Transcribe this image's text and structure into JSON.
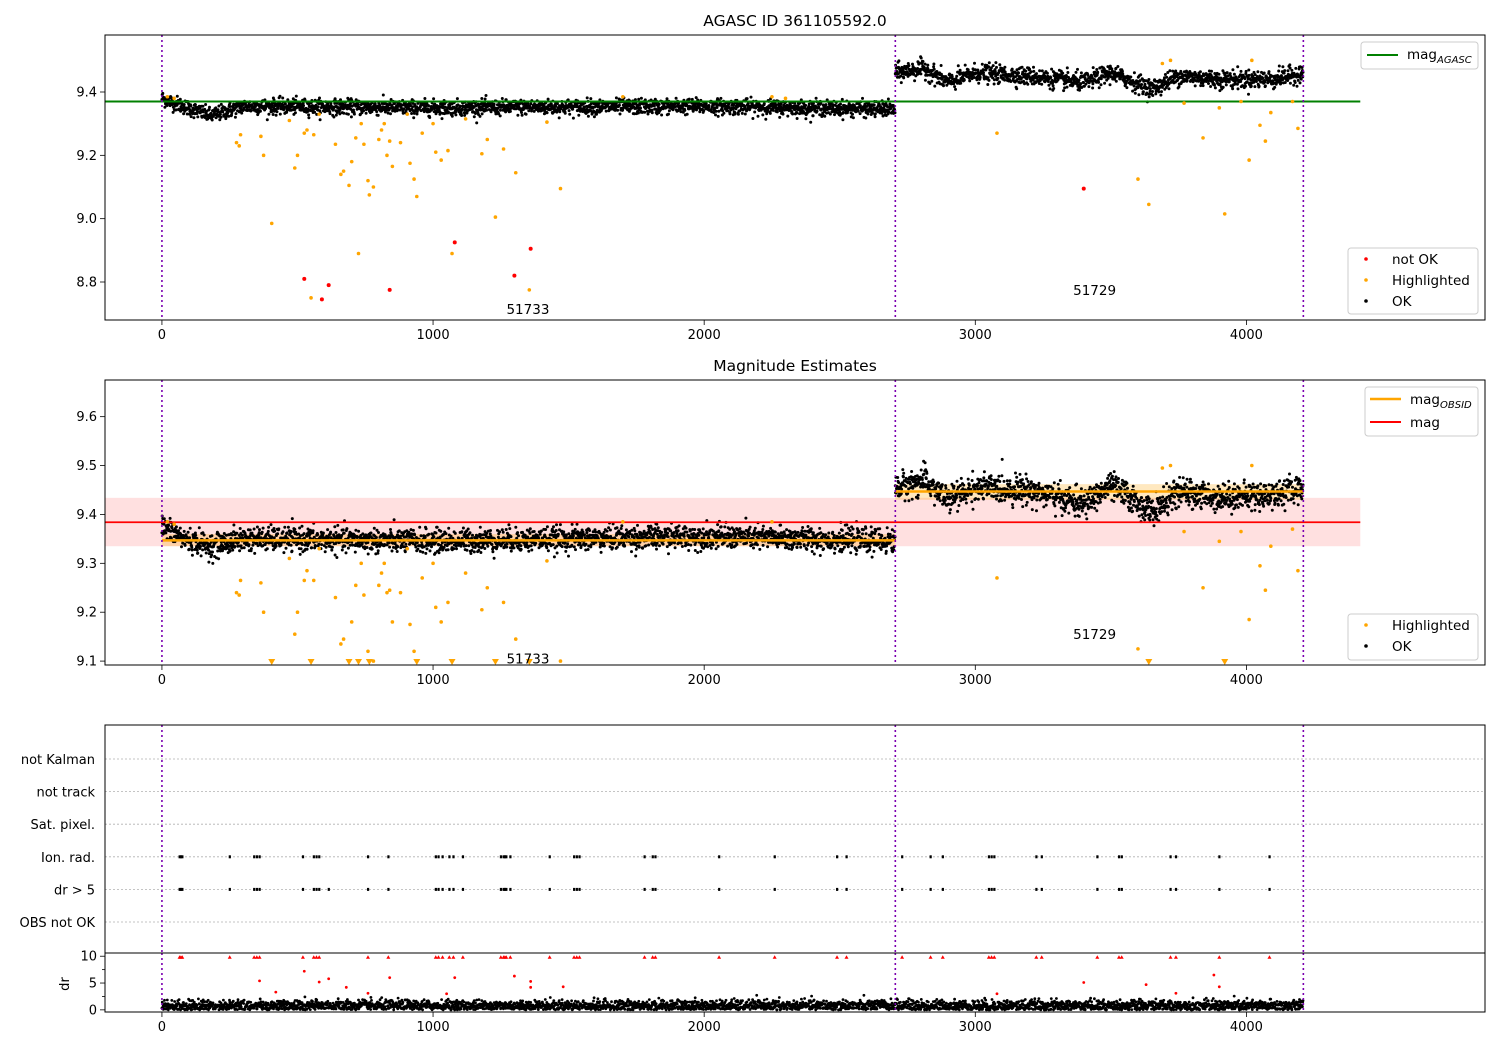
{
  "chart_data": [
    {
      "id": "panel1",
      "type": "scatter",
      "title": "AGASC ID 361105592.0",
      "xlim": [
        -210,
        4880
      ],
      "ylim": [
        8.68,
        9.58
      ],
      "xticks": [
        0,
        1000,
        2000,
        3000,
        4000
      ],
      "yticks": [
        8.8,
        9.0,
        9.2,
        9.4
      ],
      "ytick_labels": [
        "8.8",
        "9.0",
        "9.2",
        "9.4"
      ],
      "obsid_boundaries": [
        0,
        2705,
        4210
      ],
      "colors": {
        "ok": "#000000",
        "highlighted": "#ffa500",
        "not_ok": "#ff0000",
        "mag_agasc": "#008000",
        "boundary": "#7b00b0"
      },
      "mag_agasc": {
        "value": 9.37,
        "x_range": [
          -210,
          4420
        ]
      },
      "segments": [
        {
          "obsid": "51733",
          "x_range": [
            0,
            2705
          ],
          "mean": 9.35,
          "noise": 0.012,
          "drift": [
            [
              0,
              9.38
            ],
            [
              80,
              9.355
            ],
            [
              180,
              9.325
            ],
            [
              300,
              9.355
            ],
            [
              1000,
              9.35
            ],
            [
              2000,
              9.355
            ],
            [
              2705,
              9.345
            ]
          ]
        },
        {
          "obsid": "51729",
          "x_range": [
            2705,
            4210
          ],
          "mean": 9.45,
          "noise": 0.014,
          "drift": [
            [
              2705,
              9.46
            ],
            [
              2810,
              9.475
            ],
            [
              2900,
              9.43
            ],
            [
              3000,
              9.46
            ],
            [
              3200,
              9.45
            ],
            [
              3400,
              9.43
            ],
            [
              3500,
              9.46
            ],
            [
              3650,
              9.41
            ],
            [
              3750,
              9.45
            ],
            [
              3900,
              9.44
            ],
            [
              4100,
              9.44
            ],
            [
              4210,
              9.46
            ]
          ]
        }
      ],
      "highlighted": [
        [
          20,
          9.385
        ],
        [
          45,
          9.38
        ],
        [
          275,
          9.24
        ],
        [
          285,
          9.23
        ],
        [
          290,
          9.265
        ],
        [
          365,
          9.26
        ],
        [
          375,
          9.2
        ],
        [
          405,
          8.985
        ],
        [
          470,
          9.31
        ],
        [
          490,
          9.16
        ],
        [
          500,
          9.2
        ],
        [
          525,
          9.27
        ],
        [
          535,
          9.28
        ],
        [
          550,
          8.75
        ],
        [
          560,
          9.265
        ],
        [
          580,
          9.33
        ],
        [
          640,
          9.235
        ],
        [
          660,
          9.14
        ],
        [
          670,
          9.15
        ],
        [
          690,
          9.105
        ],
        [
          700,
          9.18
        ],
        [
          715,
          9.255
        ],
        [
          725,
          8.89
        ],
        [
          735,
          9.3
        ],
        [
          745,
          9.235
        ],
        [
          760,
          9.12
        ],
        [
          765,
          9.075
        ],
        [
          780,
          9.1
        ],
        [
          800,
          9.25
        ],
        [
          810,
          9.28
        ],
        [
          820,
          9.3
        ],
        [
          830,
          9.2
        ],
        [
          840,
          9.245
        ],
        [
          850,
          9.165
        ],
        [
          880,
          9.24
        ],
        [
          905,
          9.33
        ],
        [
          915,
          9.175
        ],
        [
          930,
          9.125
        ],
        [
          940,
          9.07
        ],
        [
          960,
          9.27
        ],
        [
          1000,
          9.3
        ],
        [
          1010,
          9.21
        ],
        [
          1030,
          9.185
        ],
        [
          1055,
          9.215
        ],
        [
          1070,
          8.89
        ],
        [
          1120,
          9.315
        ],
        [
          1180,
          9.205
        ],
        [
          1200,
          9.25
        ],
        [
          1230,
          9.005
        ],
        [
          1260,
          9.22
        ],
        [
          1305,
          9.145
        ],
        [
          1355,
          8.775
        ],
        [
          1420,
          9.305
        ],
        [
          1470,
          9.095
        ],
        [
          1700,
          9.385
        ],
        [
          2250,
          9.385
        ],
        [
          2300,
          9.38
        ],
        [
          3080,
          9.27
        ],
        [
          3600,
          9.125
        ],
        [
          3640,
          9.045
        ],
        [
          3690,
          9.49
        ],
        [
          3720,
          9.5
        ],
        [
          3770,
          9.365
        ],
        [
          3840,
          9.255
        ],
        [
          3900,
          9.35
        ],
        [
          3920,
          9.015
        ],
        [
          3980,
          9.37
        ],
        [
          4010,
          9.185
        ],
        [
          4020,
          9.5
        ],
        [
          4050,
          9.295
        ],
        [
          4070,
          9.245
        ],
        [
          4090,
          9.335
        ],
        [
          4170,
          9.37
        ],
        [
          4190,
          9.285
        ]
      ],
      "not_ok": [
        [
          525,
          8.81
        ],
        [
          590,
          8.745
        ],
        [
          615,
          8.79
        ],
        [
          840,
          8.775
        ],
        [
          1080,
          8.925
        ],
        [
          1300,
          8.82
        ],
        [
          1360,
          8.905
        ],
        [
          3400,
          9.095
        ]
      ],
      "annotations": [
        {
          "text": "51733",
          "x": 1350,
          "y": 8.715
        },
        {
          "text": "51729",
          "x": 3440,
          "y": 8.775
        }
      ],
      "legend": {
        "top": [
          {
            "label": "mag",
            "subscript": "AGASC"
          }
        ],
        "bottom": [
          {
            "label": "not OK"
          },
          {
            "label": "Highlighted"
          },
          {
            "label": "OK"
          }
        ]
      }
    },
    {
      "id": "panel2",
      "type": "scatter",
      "title": "Magnitude Estimates",
      "xlim": [
        -210,
        4880
      ],
      "ylim": [
        9.092,
        9.675
      ],
      "xticks": [
        0,
        1000,
        2000,
        3000,
        4000
      ],
      "yticks": [
        9.1,
        9.2,
        9.3,
        9.4,
        9.5,
        9.6
      ],
      "ytick_labels": [
        "9.1",
        "9.2",
        "9.3",
        "9.4",
        "9.5",
        "9.6"
      ],
      "obsid_boundaries": [
        0,
        2705,
        4210
      ],
      "colors": {
        "ok": "#000000",
        "highlighted": "#ffa500",
        "mag_obsid": "#ffa500",
        "mag": "#ff0000",
        "band": "#ff0000",
        "boundary": "#7b00b0"
      },
      "mag": {
        "value": 9.384,
        "x_range": [
          -210,
          4420
        ],
        "band": [
          9.335,
          9.434
        ]
      },
      "mag_obsid": [
        {
          "value": 9.347,
          "x_range": [
            0,
            2705
          ],
          "band": [
            9.335,
            9.36
          ]
        },
        {
          "value": 9.447,
          "x_range": [
            2705,
            4210
          ],
          "band": [
            9.43,
            9.462
          ]
        }
      ],
      "segments": [
        {
          "obsid": "51733",
          "x_range": [
            0,
            2705
          ],
          "mean": 9.35,
          "noise": 0.012,
          "drift": [
            [
              0,
              9.375
            ],
            [
              80,
              9.35
            ],
            [
              180,
              9.335
            ],
            [
              300,
              9.35
            ],
            [
              1000,
              9.345
            ],
            [
              2000,
              9.355
            ],
            [
              2705,
              9.345
            ]
          ]
        },
        {
          "obsid": "51729",
          "x_range": [
            2705,
            4210
          ],
          "mean": 9.45,
          "noise": 0.014,
          "drift": [
            [
              2705,
              9.455
            ],
            [
              2810,
              9.47
            ],
            [
              2900,
              9.43
            ],
            [
              3000,
              9.455
            ],
            [
              3200,
              9.45
            ],
            [
              3400,
              9.42
            ],
            [
              3500,
              9.46
            ],
            [
              3650,
              9.405
            ],
            [
              3750,
              9.445
            ],
            [
              3900,
              9.435
            ],
            [
              4100,
              9.44
            ],
            [
              4210,
              9.455
            ]
          ]
        }
      ],
      "highlighted": [
        [
          20,
          9.385
        ],
        [
          45,
          9.38
        ],
        [
          275,
          9.24
        ],
        [
          285,
          9.235
        ],
        [
          290,
          9.265
        ],
        [
          365,
          9.26
        ],
        [
          375,
          9.2
        ],
        [
          470,
          9.31
        ],
        [
          490,
          9.155
        ],
        [
          500,
          9.2
        ],
        [
          525,
          9.265
        ],
        [
          535,
          9.285
        ],
        [
          560,
          9.265
        ],
        [
          580,
          9.33
        ],
        [
          640,
          9.23
        ],
        [
          660,
          9.135
        ],
        [
          670,
          9.145
        ],
        [
          690,
          9.1
        ],
        [
          700,
          9.18
        ],
        [
          715,
          9.255
        ],
        [
          735,
          9.3
        ],
        [
          745,
          9.235
        ],
        [
          760,
          9.12
        ],
        [
          780,
          9.1
        ],
        [
          800,
          9.255
        ],
        [
          810,
          9.28
        ],
        [
          820,
          9.3
        ],
        [
          830,
          9.24
        ],
        [
          840,
          9.245
        ],
        [
          850,
          9.18
        ],
        [
          880,
          9.24
        ],
        [
          905,
          9.33
        ],
        [
          915,
          9.175
        ],
        [
          930,
          9.12
        ],
        [
          960,
          9.27
        ],
        [
          1000,
          9.3
        ],
        [
          1010,
          9.21
        ],
        [
          1030,
          9.18
        ],
        [
          1055,
          9.22
        ],
        [
          1120,
          9.28
        ],
        [
          1180,
          9.205
        ],
        [
          1200,
          9.25
        ],
        [
          1260,
          9.22
        ],
        [
          1305,
          9.145
        ],
        [
          1420,
          9.305
        ],
        [
          1470,
          9.1
        ],
        [
          1700,
          9.385
        ],
        [
          2250,
          9.385
        ],
        [
          3080,
          9.27
        ],
        [
          3600,
          9.125
        ],
        [
          3690,
          9.495
        ],
        [
          3720,
          9.5
        ],
        [
          3770,
          9.365
        ],
        [
          3840,
          9.25
        ],
        [
          3900,
          9.345
        ],
        [
          3980,
          9.365
        ],
        [
          4010,
          9.185
        ],
        [
          4020,
          9.5
        ],
        [
          4050,
          9.295
        ],
        [
          4070,
          9.245
        ],
        [
          4090,
          9.335
        ],
        [
          4170,
          9.37
        ],
        [
          4190,
          9.285
        ]
      ],
      "clipped_markers": [
        405,
        550,
        690,
        725,
        765,
        940,
        1070,
        1230,
        1355,
        3640,
        3920
      ],
      "annotations": [
        {
          "text": "51733",
          "x": 1350,
          "y": 9.105
        },
        {
          "text": "51729",
          "x": 3440,
          "y": 9.155
        }
      ],
      "legend": {
        "top": [
          {
            "label": "mag",
            "subscript": "OBSID"
          },
          {
            "label": "mag"
          }
        ],
        "bottom": [
          {
            "label": "Highlighted"
          },
          {
            "label": "OK"
          }
        ]
      }
    },
    {
      "id": "panel3",
      "type": "scatter",
      "xlim": [
        -210,
        4880
      ],
      "categories": [
        "not Kalman",
        "not track",
        "Sat. pixel.",
        "Ion. rad.",
        "dr > 5",
        "OBS not OK"
      ],
      "obsid_boundaries": [
        0,
        2705,
        4210
      ],
      "colors": {
        "flag": "#000000",
        "grid": "#b0b0b0",
        "boundary": "#7b00b0"
      },
      "flags": {
        "Ion. rad.": [
          65,
          70,
          75,
          250,
          340,
          350,
          360,
          520,
          560,
          570,
          580,
          760,
          835,
          1010,
          1020,
          1035,
          1060,
          1075,
          1110,
          1250,
          1260,
          1265,
          1270,
          1285,
          1430,
          1520,
          1530,
          1540,
          1780,
          1810,
          1820,
          2055,
          2260,
          2490,
          2525,
          2730,
          2835,
          2880,
          3050,
          3060,
          3070,
          3225,
          3245,
          3450,
          3530,
          3540,
          3720,
          3740,
          3900,
          4085
        ],
        "dr > 5": [
          65,
          70,
          75,
          250,
          340,
          350,
          360,
          520,
          560,
          570,
          580,
          615,
          760,
          835,
          1010,
          1020,
          1035,
          1060,
          1075,
          1110,
          1250,
          1260,
          1265,
          1270,
          1285,
          1430,
          1520,
          1530,
          1540,
          1780,
          1810,
          1820,
          2055,
          2260,
          2490,
          2525,
          2730,
          2835,
          2880,
          3050,
          3060,
          3070,
          3225,
          3245,
          3450,
          3530,
          3540,
          3720,
          3740,
          3900,
          4085
        ]
      }
    },
    {
      "id": "panel4",
      "type": "scatter",
      "ylabel": "dr",
      "xlim": [
        -210,
        4880
      ],
      "ylim": [
        -0.4,
        10.6
      ],
      "xticks": [
        0,
        1000,
        2000,
        3000,
        4000
      ],
      "yticks": [
        0,
        5,
        10
      ],
      "minor_yticks": [
        2.5,
        7.5
      ],
      "ytick_labels": [
        "0",
        "5",
        "10"
      ],
      "obsid_boundaries": [
        0,
        2705,
        4210
      ],
      "colors": {
        "dr": "#000000",
        "outlier": "#ff0000",
        "boundary": "#7b00b0"
      },
      "dr_baseline": {
        "mean": 0.75,
        "spread": 0.55
      },
      "clipped_at_10": [
        65,
        70,
        75,
        250,
        340,
        350,
        360,
        520,
        560,
        570,
        580,
        760,
        835,
        1010,
        1020,
        1035,
        1060,
        1075,
        1110,
        1250,
        1260,
        1265,
        1270,
        1285,
        1430,
        1520,
        1530,
        1540,
        1780,
        1810,
        1820,
        2055,
        2260,
        2490,
        2525,
        2730,
        2835,
        2880,
        3050,
        3060,
        3070,
        3225,
        3245,
        3450,
        3530,
        3540,
        3720,
        3740,
        3900,
        4085
      ],
      "outliers": [
        [
          360,
          5.4
        ],
        [
          420,
          3.3
        ],
        [
          525,
          7.2
        ],
        [
          580,
          5.2
        ],
        [
          615,
          5.8
        ],
        [
          680,
          4.2
        ],
        [
          760,
          3.1
        ],
        [
          840,
          6.0
        ],
        [
          1050,
          3.0
        ],
        [
          1080,
          6.0
        ],
        [
          1300,
          6.3
        ],
        [
          1360,
          4.2
        ],
        [
          1360,
          5.3
        ],
        [
          1480,
          4.3
        ],
        [
          3080,
          3.0
        ],
        [
          3400,
          5.1
        ],
        [
          3630,
          4.7
        ],
        [
          3740,
          3.1
        ],
        [
          3900,
          4.3
        ],
        [
          3880,
          6.5
        ]
      ]
    }
  ]
}
